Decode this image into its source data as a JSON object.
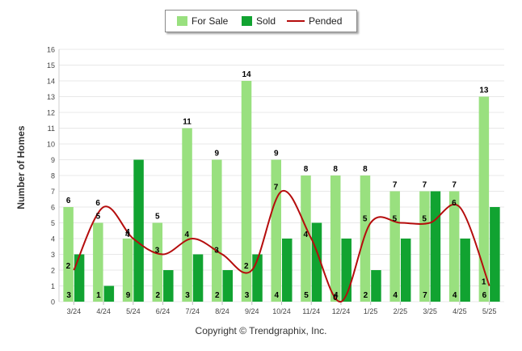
{
  "legend": {
    "for_sale": "For Sale",
    "sold": "Sold",
    "pended": "Pended"
  },
  "footer": {
    "copyright": "Copyright © Trendgraphix, Inc."
  },
  "colors": {
    "for_sale": "#99e07f",
    "sold": "#11a331",
    "pended": "#b50d0d",
    "grid": "#e8e8e8"
  },
  "chart_data": {
    "type": "bar",
    "ylabel": "Number of Homes",
    "ylim": [
      0,
      16
    ],
    "yticks": [
      0,
      1,
      2,
      3,
      4,
      5,
      6,
      7,
      8,
      9,
      10,
      11,
      12,
      13,
      14,
      15,
      16
    ],
    "categories": [
      "3/24",
      "4/24",
      "5/24",
      "6/24",
      "7/24",
      "8/24",
      "9/24",
      "10/24",
      "11/24",
      "12/24",
      "1/25",
      "2/25",
      "3/25",
      "4/25",
      "5/25"
    ],
    "series": [
      {
        "name": "For Sale",
        "type": "bar",
        "values": [
          6,
          5,
          4,
          5,
          11,
          9,
          14,
          9,
          8,
          8,
          8,
          7,
          7,
          7,
          13
        ]
      },
      {
        "name": "Sold",
        "type": "bar",
        "values": [
          3,
          1,
          9,
          2,
          3,
          2,
          3,
          4,
          5,
          4,
          2,
          4,
          7,
          4,
          6
        ]
      },
      {
        "name": "Pended",
        "type": "line",
        "values": [
          2,
          6,
          4,
          3,
          4,
          3,
          2,
          7,
          4,
          0,
          5,
          5,
          5,
          6,
          1
        ]
      }
    ],
    "legend_position": "top",
    "grid": true
  }
}
